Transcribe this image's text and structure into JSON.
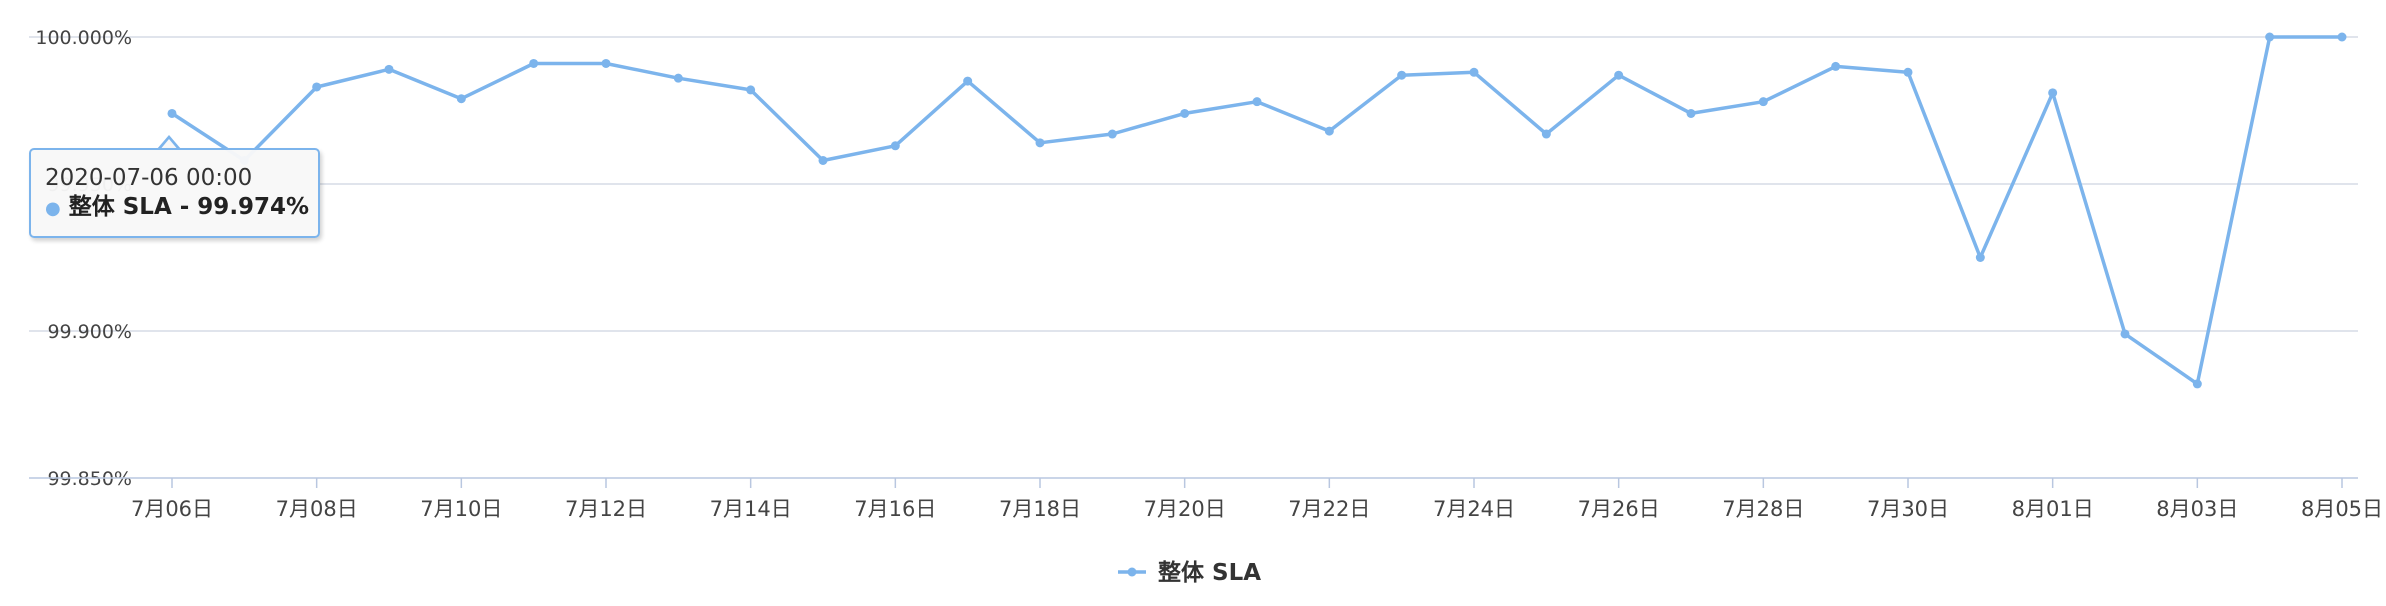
{
  "chart_data": {
    "type": "line",
    "title": "",
    "xlabel": "",
    "ylabel": "",
    "y_ticks": [
      "99.850%",
      "99.900%",
      "99.950%",
      "100.000%"
    ],
    "y_tick_values": [
      99.85,
      99.9,
      99.95,
      100.0
    ],
    "ylim": [
      99.85,
      100.0
    ],
    "grid": true,
    "legend_position": "bottom-center",
    "x_tick_labels": [
      "7月06日",
      "7月08日",
      "7月10日",
      "7月12日",
      "7月14日",
      "7月16日",
      "7月18日",
      "7月20日",
      "7月22日",
      "7月24日",
      "7月26日",
      "7月28日",
      "7月30日",
      "8月01日",
      "8月03日",
      "8月05日"
    ],
    "x": [
      "2020-07-06",
      "2020-07-07",
      "2020-07-08",
      "2020-07-09",
      "2020-07-10",
      "2020-07-11",
      "2020-07-12",
      "2020-07-13",
      "2020-07-14",
      "2020-07-15",
      "2020-07-16",
      "2020-07-17",
      "2020-07-18",
      "2020-07-19",
      "2020-07-20",
      "2020-07-21",
      "2020-07-22",
      "2020-07-23",
      "2020-07-24",
      "2020-07-25",
      "2020-07-26",
      "2020-07-27",
      "2020-07-28",
      "2020-07-29",
      "2020-07-30",
      "2020-07-31",
      "2020-08-01",
      "2020-08-02",
      "2020-08-03",
      "2020-08-04",
      "2020-08-05"
    ],
    "series": [
      {
        "name": "整体 SLA",
        "color": "#7cb4ec",
        "values": [
          99.974,
          99.958,
          99.983,
          99.989,
          99.979,
          99.991,
          99.991,
          99.986,
          99.982,
          99.958,
          99.963,
          99.985,
          99.964,
          99.967,
          99.974,
          99.978,
          99.968,
          99.987,
          99.988,
          99.967,
          99.987,
          99.974,
          99.978,
          99.99,
          99.988,
          99.925,
          99.981,
          99.899,
          99.882,
          100.0,
          100.0
        ]
      }
    ]
  },
  "legend": {
    "label": "整体 SLA"
  },
  "tooltip": {
    "date": "2020-07-06 00:00",
    "text": "整体 SLA - 99.974%"
  }
}
